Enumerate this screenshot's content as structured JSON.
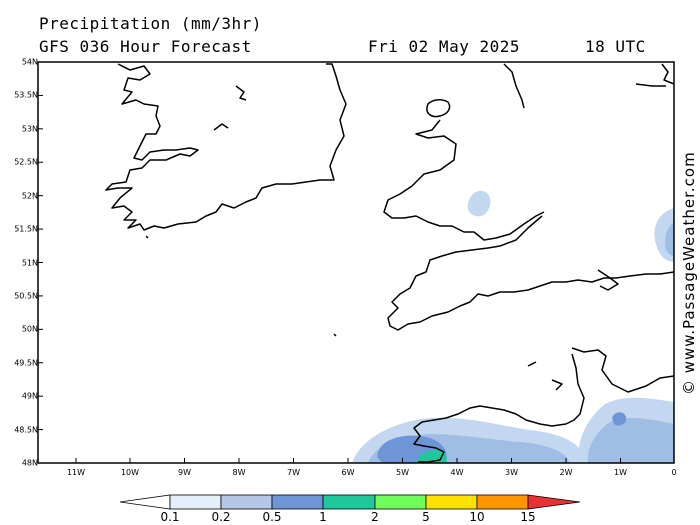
{
  "header": {
    "title": "Precipitation (mm/3hr)",
    "model": "GFS 036 Hour Forecast",
    "date": "Fri 02 May 2025",
    "time": "18 UTC"
  },
  "credit": "© www.PassageWeather.com",
  "lat_labels": [
    "54N",
    "53.5N",
    "53N",
    "52.5N",
    "52N",
    "51.5N",
    "51N",
    "50.5N",
    "50N",
    "49.5N",
    "49N",
    "48.5N",
    "48N"
  ],
  "lon_labels": [
    "11W",
    "10W",
    "9W",
    "8W",
    "7W",
    "6W",
    "5W",
    "4W",
    "3W",
    "2W",
    "1W",
    "0"
  ],
  "legend": {
    "labels": [
      "0.1",
      "0.2",
      "0.5",
      "1",
      "2",
      "5",
      "10",
      "15"
    ],
    "colors": [
      "#e6eefa",
      "#b4c8e6",
      "#6e96d7",
      "#1fc89b",
      "#6eff5a",
      "#ffe100",
      "#ff9600",
      "#e63232"
    ]
  },
  "colors": {
    "light_blue": "#c3d7f0",
    "mid_blue": "#a0bde6",
    "blue": "#6e96d7",
    "green": "#1fc89b"
  }
}
